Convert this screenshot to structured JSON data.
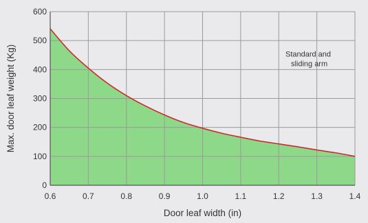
{
  "chart_data": {
    "type": "area",
    "title": "",
    "xlabel": "Door leaf width (in)",
    "ylabel": "Max. door leaf weight (Kg)",
    "xlim": [
      0.6,
      1.4
    ],
    "ylim": [
      0,
      600
    ],
    "x_ticks": [
      "0.6",
      "0.7",
      "0.8",
      "0.9",
      "1.0",
      "1.1",
      "1.2",
      "1.3",
      "1.4"
    ],
    "y_ticks": [
      "0",
      "100",
      "200",
      "300",
      "400",
      "500",
      "600"
    ],
    "grid": true,
    "annotation": [
      "Standard and",
      "sliding arm"
    ],
    "series": [
      {
        "x": [
          0.6,
          0.65,
          0.7,
          0.75,
          0.8,
          0.85,
          0.9,
          0.95,
          1.0,
          1.05,
          1.1,
          1.15,
          1.2,
          1.25,
          1.3,
          1.35,
          1.4
        ],
        "y": [
          541,
          465,
          405,
          353,
          310,
          274,
          243,
          217,
          197,
          180,
          166,
          153,
          143,
          133,
          122,
          112,
          100
        ]
      }
    ],
    "colors": {
      "fill": "#8ed88a",
      "line": "#cc2a2a",
      "grid": "#9a9a9a",
      "axis": "#555555",
      "background": "#eaeaec"
    }
  }
}
